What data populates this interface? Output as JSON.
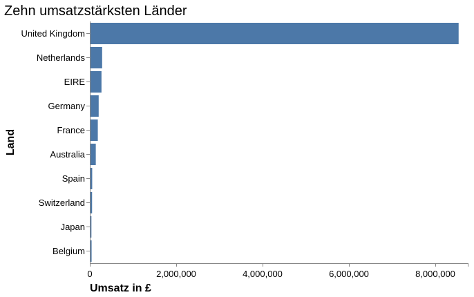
{
  "chart_data": {
    "type": "bar",
    "orientation": "horizontal",
    "title": "Zehn umsatzstärksten Länder",
    "xlabel": "Umsatz in £",
    "ylabel": "Land",
    "categories": [
      "United Kingdom",
      "Netherlands",
      "EIRE",
      "Germany",
      "France",
      "Australia",
      "Spain",
      "Switzerland",
      "Japan",
      "Belgium"
    ],
    "values": [
      8540000,
      285000,
      270000,
      205000,
      185000,
      138000,
      55000,
      52000,
      37000,
      41000
    ],
    "xlim": [
      0,
      8800000
    ],
    "xticks": [
      0,
      2000000,
      4000000,
      6000000,
      8000000
    ],
    "xtick_labels": [
      "0",
      "2,000,000",
      "4,000,000",
      "6,000,000",
      "8,000,000"
    ],
    "grid": false,
    "bar_color": "#4c78a8"
  }
}
